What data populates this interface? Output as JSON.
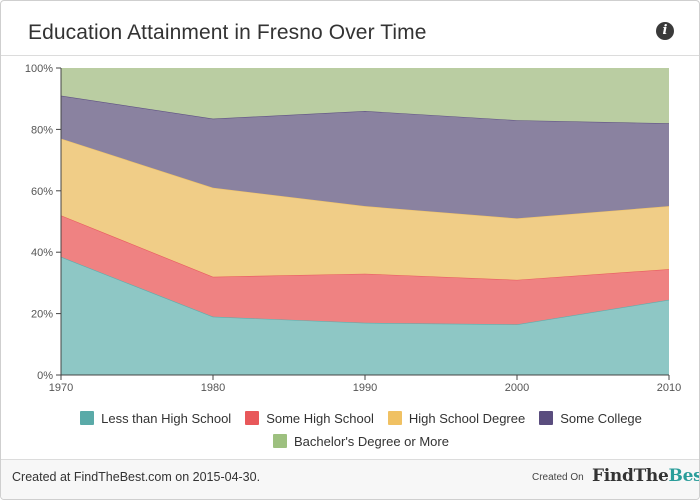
{
  "header": {
    "title": "Education Attainment in Fresno Over Time",
    "info_icon": "info-icon",
    "info_glyph": "i"
  },
  "chart_data": {
    "type": "area",
    "stacked": true,
    "percent": true,
    "title": "Education Attainment in Fresno Over Time",
    "x": [
      1970,
      1980,
      1990,
      2000,
      2010
    ],
    "x_tick_labels": [
      "1970",
      "1980",
      "1990",
      "2000",
      "2010"
    ],
    "ylim": [
      0,
      100
    ],
    "y_tick_labels": [
      "0%",
      "20%",
      "40%",
      "60%",
      "80%",
      "100%"
    ],
    "y_ticks": [
      0,
      20,
      40,
      60,
      80,
      100
    ],
    "grid": false,
    "legend_placement": "bottom",
    "series": [
      {
        "name": "Less than High School",
        "color": "#8ec7c5",
        "legend_color": "#5aaaa8",
        "values": [
          38.5,
          19,
          17,
          16.5,
          24.5
        ]
      },
      {
        "name": "Some High School",
        "color": "#ef8282",
        "legend_color": "#e8585a",
        "values": [
          13.5,
          13,
          16,
          14.5,
          10
        ]
      },
      {
        "name": "High School Degree",
        "color": "#f0cd87",
        "legend_color": "#f0c163",
        "values": [
          25,
          29,
          22,
          20,
          20.5
        ]
      },
      {
        "name": "Some College",
        "color": "#8a82a0",
        "legend_color": "#5a4d7e",
        "values": [
          14,
          22.5,
          31,
          32,
          27
        ]
      },
      {
        "name": "Bachelor's Degree or More",
        "color": "#bacda2",
        "legend_color": "#9dc07f",
        "values": [
          9,
          16.5,
          14,
          17,
          18
        ]
      }
    ]
  },
  "footer": {
    "created_text": "Created at FindTheBest.com on 2015-04-30.",
    "created_on_label": "Created On",
    "logo_part1": "FindThe",
    "logo_part2": "Best"
  }
}
